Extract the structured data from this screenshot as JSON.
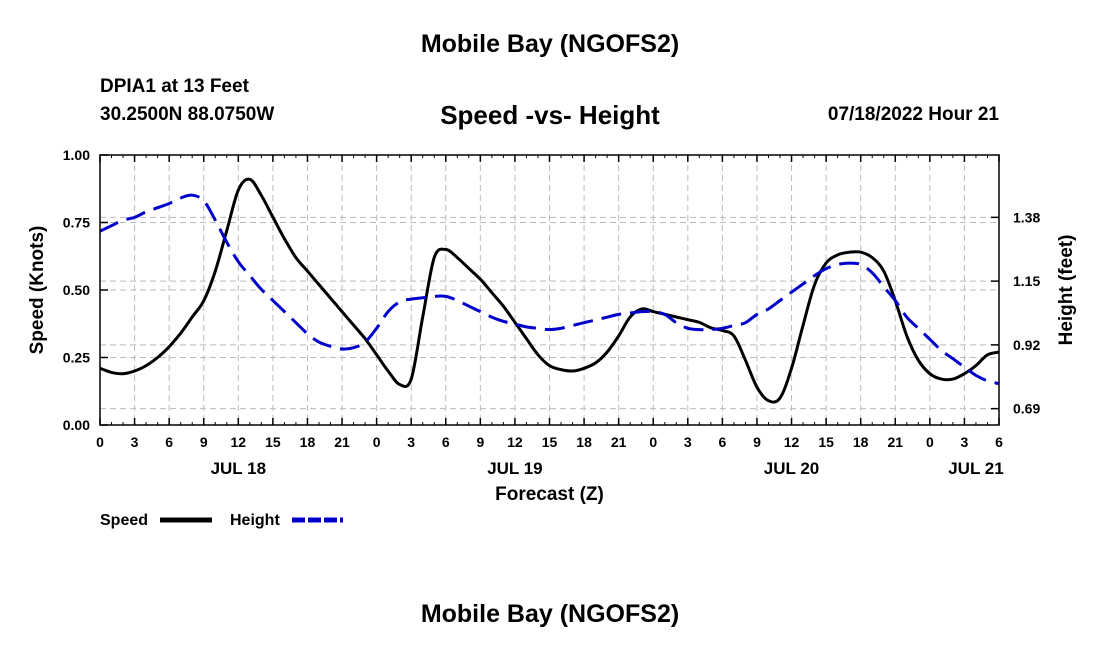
{
  "header": {
    "title": "Mobile Bay (NGOFS2)",
    "station": "DPIA1 at 13 Feet",
    "coords": "30.2500N  88.0750W",
    "datetime": "07/18/2022 Hour 21",
    "footer_title": "Mobile Bay (NGOFS2)"
  },
  "colors": {
    "speed": "#000000",
    "height": "#0000cc",
    "grid": "#bbbbbb"
  },
  "chart_data": {
    "type": "line",
    "title": "Speed -vs- Height",
    "xlabel": "Forecast (Z)",
    "ylabel": "Speed (Knots)",
    "y2label": "Height (feet)",
    "x_unit": "hours since JUL 18 00Z",
    "xlim": [
      0,
      78
    ],
    "ylim": [
      0,
      1.0
    ],
    "y2lim": [
      0.631,
      1.605
    ],
    "x_ticks": [
      0,
      3,
      6,
      9,
      12,
      15,
      18,
      21,
      24,
      27,
      30,
      33,
      36,
      39,
      42,
      45,
      48,
      51,
      54,
      57,
      60,
      63,
      66,
      69,
      72,
      75,
      78
    ],
    "x_tick_labels": [
      "0",
      "3",
      "6",
      "9",
      "12",
      "15",
      "18",
      "21",
      "0",
      "3",
      "6",
      "9",
      "12",
      "15",
      "18",
      "21",
      "0",
      "3",
      "6",
      "9",
      "12",
      "15",
      "18",
      "21",
      "0",
      "3",
      "6"
    ],
    "date_labels": [
      {
        "x": 12,
        "label": "JUL 18"
      },
      {
        "x": 36,
        "label": "JUL 19"
      },
      {
        "x": 60,
        "label": "JUL 20"
      },
      {
        "x": 76,
        "label": "JUL 21"
      }
    ],
    "y_ticks": [
      0.0,
      0.25,
      0.5,
      0.75,
      1.0
    ],
    "y_tick_labels": [
      "0.00",
      "0.25",
      "0.50",
      "0.75",
      "1.00"
    ],
    "y2_ticks": [
      0.69,
      0.92,
      1.15,
      1.38
    ],
    "y2_tick_labels": [
      "0.69",
      "0.92",
      "1.15",
      "1.38"
    ],
    "series": [
      {
        "name": "Speed",
        "axis": "left",
        "style": "solid",
        "x": [
          0,
          1,
          2,
          3,
          4,
          5,
          6,
          7,
          8,
          9,
          10,
          11,
          12,
          13,
          14,
          15,
          16,
          17,
          18,
          19,
          20,
          21,
          22,
          23,
          24,
          25,
          26,
          27,
          28,
          29,
          30,
          31,
          32,
          33,
          34,
          35,
          36,
          37,
          38,
          39,
          40,
          41,
          42,
          43,
          44,
          45,
          46,
          47,
          48,
          49,
          50,
          51,
          52,
          53,
          54,
          55,
          56,
          57,
          58,
          59,
          60,
          61,
          62,
          63,
          64,
          65,
          66,
          67,
          68,
          69,
          70,
          71,
          72,
          73,
          74,
          75,
          76,
          77,
          78
        ],
        "values": [
          0.21,
          0.195,
          0.19,
          0.2,
          0.22,
          0.25,
          0.29,
          0.34,
          0.4,
          0.46,
          0.57,
          0.72,
          0.87,
          0.91,
          0.85,
          0.77,
          0.69,
          0.62,
          0.57,
          0.52,
          0.47,
          0.42,
          0.37,
          0.32,
          0.26,
          0.2,
          0.15,
          0.17,
          0.4,
          0.62,
          0.65,
          0.62,
          0.58,
          0.54,
          0.49,
          0.44,
          0.38,
          0.32,
          0.26,
          0.22,
          0.205,
          0.2,
          0.21,
          0.23,
          0.27,
          0.33,
          0.4,
          0.43,
          0.42,
          0.41,
          0.4,
          0.39,
          0.38,
          0.36,
          0.35,
          0.33,
          0.24,
          0.14,
          0.09,
          0.1,
          0.21,
          0.37,
          0.52,
          0.6,
          0.63,
          0.64,
          0.64,
          0.62,
          0.57,
          0.46,
          0.33,
          0.24,
          0.19,
          0.17,
          0.17,
          0.19,
          0.22,
          0.26,
          0.27
        ]
      },
      {
        "name": "Height",
        "axis": "right",
        "style": "dashed",
        "x": [
          0,
          1,
          2,
          3,
          4,
          5,
          6,
          7,
          8,
          9,
          10,
          11,
          12,
          13,
          14,
          15,
          16,
          17,
          18,
          19,
          20,
          21,
          22,
          23,
          24,
          25,
          26,
          27,
          28,
          29,
          30,
          31,
          32,
          33,
          34,
          35,
          36,
          37,
          38,
          39,
          40,
          41,
          42,
          43,
          44,
          45,
          46,
          47,
          48,
          49,
          50,
          51,
          52,
          53,
          54,
          55,
          56,
          57,
          58,
          59,
          60,
          61,
          62,
          63,
          64,
          65,
          66,
          67,
          68,
          69,
          70,
          71,
          72,
          73,
          74,
          75,
          76,
          77,
          78
        ],
        "values": [
          1.33,
          1.35,
          1.37,
          1.38,
          1.4,
          1.415,
          1.43,
          1.45,
          1.46,
          1.44,
          1.37,
          1.29,
          1.22,
          1.17,
          1.12,
          1.08,
          1.04,
          1.0,
          0.96,
          0.93,
          0.915,
          0.905,
          0.91,
          0.93,
          0.98,
          1.04,
          1.075,
          1.085,
          1.09,
          1.095,
          1.095,
          1.08,
          1.06,
          1.04,
          1.02,
          1.005,
          0.995,
          0.985,
          0.98,
          0.975,
          0.98,
          0.99,
          1.0,
          1.01,
          1.02,
          1.03,
          1.035,
          1.04,
          1.04,
          1.03,
          1.0,
          0.98,
          0.975,
          0.975,
          0.98,
          0.99,
          1.0,
          1.03,
          1.05,
          1.08,
          1.11,
          1.14,
          1.17,
          1.195,
          1.21,
          1.215,
          1.21,
          1.18,
          1.13,
          1.08,
          1.02,
          0.98,
          0.94,
          0.9,
          0.87,
          0.84,
          0.81,
          0.79,
          0.78
        ]
      }
    ],
    "legend": [
      {
        "label": "Speed"
      },
      {
        "label": "Height"
      }
    ],
    "legend_position": "bottom-left",
    "grid": true
  }
}
